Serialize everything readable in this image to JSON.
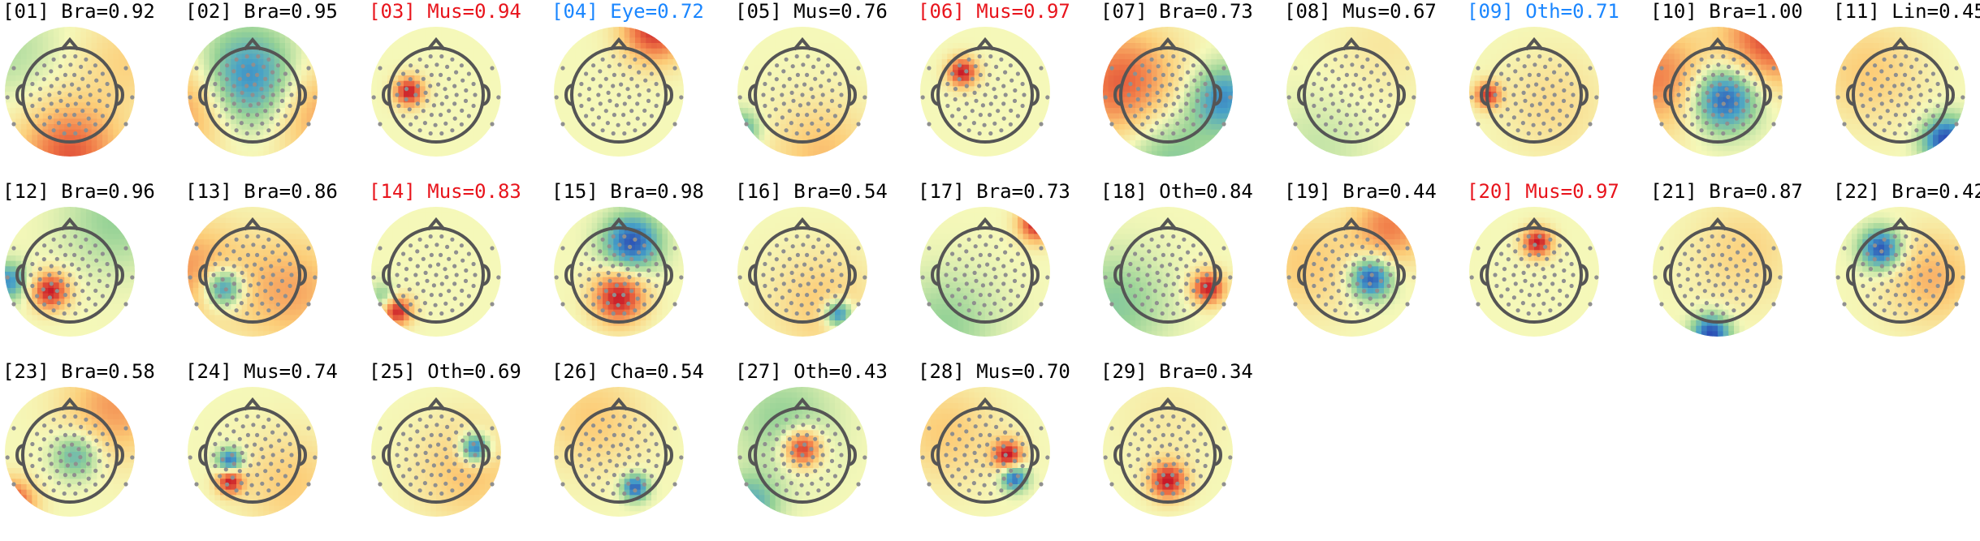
{
  "figure": {
    "description_colors": {
      "default_label": "#000000",
      "muscle_flag": "#e8141c",
      "eye_other_flag": "#1a86ff",
      "head_outline": "#555555",
      "electrode": "#8f8f8f"
    }
  },
  "components": [
    {
      "index": "[01]",
      "category": "Bra",
      "score": "0.92",
      "flag": "none",
      "map": [
        {
          "dx": 0.0,
          "dy": 0.95,
          "a": 0.75
        },
        {
          "dx": 0.9,
          "dy": -0.5,
          "a": 0.25
        },
        {
          "dx": -0.9,
          "dy": -0.6,
          "a": -0.2
        }
      ]
    },
    {
      "index": "[02]",
      "category": "Bra",
      "score": "0.95",
      "flag": "none",
      "map": [
        {
          "dx": -0.1,
          "dy": -0.15,
          "a": -0.9
        },
        {
          "dx": -0.9,
          "dy": 0.2,
          "a": 0.6
        },
        {
          "dx": 0.9,
          "dy": 0.3,
          "a": 0.5
        }
      ]
    },
    {
      "index": "[03]",
      "category": "Mus",
      "score": "0.94",
      "flag": "muscle",
      "map": [
        {
          "dx": -0.42,
          "dy": 0.0,
          "a": 1.0,
          "s": 0.16
        }
      ]
    },
    {
      "index": "[04]",
      "category": "Eye",
      "score": "0.72",
      "flag": "eye",
      "map": [
        {
          "dx": 0.55,
          "dy": -0.95,
          "a": 0.9,
          "s": 0.35
        }
      ]
    },
    {
      "index": "[05]",
      "category": "Mus",
      "score": "0.76",
      "flag": "none",
      "map": [
        {
          "dx": -0.95,
          "dy": 0.6,
          "a": -0.6,
          "s": 0.2
        },
        {
          "dx": 0.3,
          "dy": 0.95,
          "a": 0.35
        }
      ]
    },
    {
      "index": "[06]",
      "category": "Mus",
      "score": "0.97",
      "flag": "muscle",
      "map": [
        {
          "dx": -0.35,
          "dy": -0.3,
          "a": 1.0,
          "s": 0.16
        }
      ]
    },
    {
      "index": "[07]",
      "category": "Bra",
      "score": "0.73",
      "flag": "none",
      "map": [
        {
          "dx": -0.7,
          "dy": -0.1,
          "a": 0.75,
          "s": 0.6
        },
        {
          "dx": 0.85,
          "dy": 0.1,
          "a": -0.7,
          "s": 0.35
        },
        {
          "dx": 0.0,
          "dy": 0.9,
          "a": -0.4
        }
      ]
    },
    {
      "index": "[08]",
      "category": "Mus",
      "score": "0.67",
      "flag": "none",
      "map": [
        {
          "dx": -0.5,
          "dy": 0.85,
          "a": -0.15
        },
        {
          "dx": 0.5,
          "dy": -0.7,
          "a": 0.12
        }
      ]
    },
    {
      "index": "[09]",
      "category": "Oth",
      "score": "0.71",
      "flag": "eye",
      "map": [
        {
          "dx": -0.72,
          "dy": 0.05,
          "a": 0.9,
          "s": 0.14
        },
        {
          "dx": 0.3,
          "dy": 0.2,
          "a": 0.2
        }
      ]
    },
    {
      "index": "[10]",
      "category": "Bra",
      "score": "1.00",
      "flag": "none",
      "map": [
        {
          "dx": 0.1,
          "dy": 0.1,
          "a": -1.0,
          "s": 0.35
        },
        {
          "dx": 0.8,
          "dy": -0.8,
          "a": 0.8,
          "s": 0.5
        },
        {
          "dx": -0.9,
          "dy": -0.2,
          "a": 0.6
        }
      ]
    },
    {
      "index": "[11]",
      "category": "Lin",
      "score": "0.45",
      "flag": "none",
      "map": [
        {
          "dx": 0.7,
          "dy": 0.75,
          "a": -1.0,
          "s": 0.25
        },
        {
          "dx": -0.5,
          "dy": -0.3,
          "a": 0.3
        }
      ]
    },
    {
      "index": "[12]",
      "category": "Bra",
      "score": "0.96",
      "flag": "none",
      "map": [
        {
          "dx": -0.3,
          "dy": 0.3,
          "a": 1.0,
          "s": 0.2
        },
        {
          "dx": -0.95,
          "dy": 0.15,
          "a": -0.7,
          "s": 0.2
        },
        {
          "dx": 0.7,
          "dy": -0.8,
          "a": -0.3
        }
      ]
    },
    {
      "index": "[13]",
      "category": "Bra",
      "score": "0.86",
      "flag": "none",
      "map": [
        {
          "dx": -0.45,
          "dy": 0.25,
          "a": -0.95,
          "s": 0.22
        },
        {
          "dx": 0.6,
          "dy": 0.3,
          "a": 0.45,
          "s": 0.6
        },
        {
          "dx": -0.95,
          "dy": 0.0,
          "a": 0.5
        }
      ]
    },
    {
      "index": "[14]",
      "category": "Mus",
      "score": "0.83",
      "flag": "muscle",
      "map": [
        {
          "dx": -0.6,
          "dy": 0.6,
          "a": 1.0,
          "s": 0.16
        },
        {
          "dx": -0.8,
          "dy": 0.4,
          "a": -0.4,
          "s": 0.15
        }
      ]
    },
    {
      "index": "[15]",
      "category": "Bra",
      "score": "0.98",
      "flag": "none",
      "map": [
        {
          "dx": 0.2,
          "dy": -0.45,
          "a": -0.95,
          "s": 0.3
        },
        {
          "dx": 0.0,
          "dy": 0.4,
          "a": 1.0,
          "s": 0.28
        }
      ]
    },
    {
      "index": "[16]",
      "category": "Bra",
      "score": "0.54",
      "flag": "none",
      "map": [
        {
          "dx": 0.55,
          "dy": 0.65,
          "a": -0.9,
          "s": 0.15
        },
        {
          "dx": 0.3,
          "dy": 0.5,
          "a": 0.3
        }
      ]
    },
    {
      "index": "[17]",
      "category": "Bra",
      "score": "0.73",
      "flag": "none",
      "map": [
        {
          "dx": 0.8,
          "dy": -0.75,
          "a": 1.0,
          "s": 0.2
        },
        {
          "dx": -0.6,
          "dy": 0.8,
          "a": -0.3
        }
      ]
    },
    {
      "index": "[18]",
      "category": "Oth",
      "score": "0.84",
      "flag": "none",
      "map": [
        {
          "dx": 0.62,
          "dy": 0.25,
          "a": 1.0,
          "s": 0.18
        },
        {
          "dx": -0.8,
          "dy": 0.5,
          "a": -0.35
        }
      ]
    },
    {
      "index": "[19]",
      "category": "Bra",
      "score": "0.44",
      "flag": "none",
      "map": [
        {
          "dx": 0.3,
          "dy": 0.1,
          "a": -1.0,
          "s": 0.22
        },
        {
          "dx": 0.6,
          "dy": -0.7,
          "a": 0.6,
          "s": 0.4
        },
        {
          "dx": -0.7,
          "dy": -0.1,
          "a": 0.3
        }
      ]
    },
    {
      "index": "[20]",
      "category": "Mus",
      "score": "0.97",
      "flag": "muscle",
      "map": [
        {
          "dx": 0.05,
          "dy": -0.45,
          "a": 1.0,
          "s": 0.16
        }
      ]
    },
    {
      "index": "[21]",
      "category": "Bra",
      "score": "0.87",
      "flag": "none",
      "map": [
        {
          "dx": -0.1,
          "dy": 0.95,
          "a": -1.0,
          "s": 0.2
        },
        {
          "dx": 0.4,
          "dy": -0.3,
          "a": 0.25
        }
      ]
    },
    {
      "index": "[22]",
      "category": "Bra",
      "score": "0.42",
      "flag": "none",
      "map": [
        {
          "dx": -0.3,
          "dy": -0.35,
          "a": -1.0,
          "s": 0.22
        },
        {
          "dx": 0.5,
          "dy": 0.1,
          "a": 0.4,
          "s": 0.5
        }
      ]
    },
    {
      "index": "[23]",
      "category": "Bra",
      "score": "0.58",
      "flag": "none",
      "map": [
        {
          "dx": -0.9,
          "dy": 0.8,
          "a": 0.9,
          "s": 0.25
        },
        {
          "dx": 0.1,
          "dy": 0.05,
          "a": -0.55,
          "s": 0.25
        },
        {
          "dx": 0.7,
          "dy": -0.7,
          "a": 0.5
        }
      ]
    },
    {
      "index": "[24]",
      "category": "Mus",
      "score": "0.74",
      "flag": "none",
      "map": [
        {
          "dx": -0.35,
          "dy": 0.15,
          "a": -0.9,
          "s": 0.14
        },
        {
          "dx": -0.35,
          "dy": 0.45,
          "a": 1.0,
          "s": 0.14
        },
        {
          "dx": 0.6,
          "dy": 0.5,
          "a": 0.3
        }
      ]
    },
    {
      "index": "[25]",
      "category": "Oth",
      "score": "0.69",
      "flag": "none",
      "map": [
        {
          "dx": 0.6,
          "dy": -0.05,
          "a": -1.0,
          "s": 0.16
        },
        {
          "dx": 0.5,
          "dy": 0.3,
          "a": 0.35
        }
      ]
    },
    {
      "index": "[26]",
      "category": "Cha",
      "score": "0.54",
      "flag": "none",
      "map": [
        {
          "dx": 0.25,
          "dy": 0.55,
          "a": -0.9,
          "s": 0.14
        },
        {
          "dx": -0.4,
          "dy": -0.5,
          "a": 0.3
        }
      ]
    },
    {
      "index": "[27]",
      "category": "Oth",
      "score": "0.43",
      "flag": "none",
      "map": [
        {
          "dx": 0.0,
          "dy": -0.05,
          "a": 1.0,
          "s": 0.2
        },
        {
          "dx": -0.8,
          "dy": 0.8,
          "a": -0.55,
          "s": 0.3
        },
        {
          "dx": -0.3,
          "dy": -0.5,
          "a": -0.3
        }
      ]
    },
    {
      "index": "[28]",
      "category": "Mus",
      "score": "0.70",
      "flag": "none",
      "map": [
        {
          "dx": 0.35,
          "dy": 0.05,
          "a": 1.0,
          "s": 0.16
        },
        {
          "dx": 0.45,
          "dy": 0.4,
          "a": -0.9,
          "s": 0.14
        },
        {
          "dx": -0.6,
          "dy": -0.3,
          "a": 0.3
        }
      ]
    },
    {
      "index": "[29]",
      "category": "Bra",
      "score": "0.34",
      "flag": "none",
      "map": [
        {
          "dx": 0.0,
          "dy": 0.45,
          "a": 1.0,
          "s": 0.2
        },
        {
          "dx": 0.0,
          "dy": -0.5,
          "a": 0.1
        }
      ]
    }
  ]
}
